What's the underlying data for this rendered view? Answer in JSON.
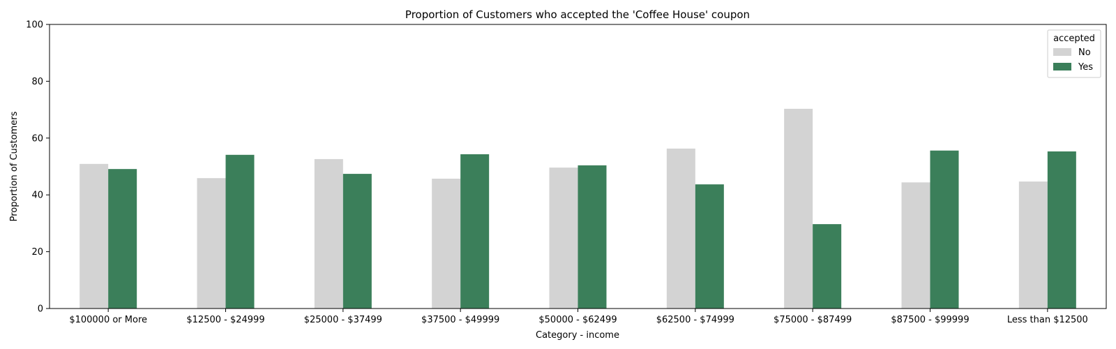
{
  "chart_data": {
    "type": "bar",
    "title": "Proportion of Customers who accepted the 'Coffee House' coupon",
    "xlabel": "Category - income",
    "ylabel": "Proportion of Customers",
    "ylim": [
      0,
      100
    ],
    "yticks": [
      0,
      20,
      40,
      60,
      80,
      100
    ],
    "grid": false,
    "legend": {
      "title": "accepted",
      "placement": "top-right"
    },
    "categories": [
      "$100000 or More",
      "$12500 - $24999",
      "$25000 - $37499",
      "$37500 - $49999",
      "$50000 - $62499",
      "$62500 - $74999",
      "$75000 - $87499",
      "$87500 - $99999",
      "Less than $12500"
    ],
    "series": [
      {
        "name": "No",
        "color": "#d3d3d3",
        "values": [
          50.9,
          45.9,
          52.6,
          45.7,
          49.6,
          56.3,
          70.3,
          44.4,
          44.7
        ]
      },
      {
        "name": "Yes",
        "color": "#3b7f5a",
        "values": [
          49.1,
          54.1,
          47.4,
          54.3,
          50.4,
          43.7,
          29.7,
          55.6,
          55.3
        ]
      }
    ]
  }
}
